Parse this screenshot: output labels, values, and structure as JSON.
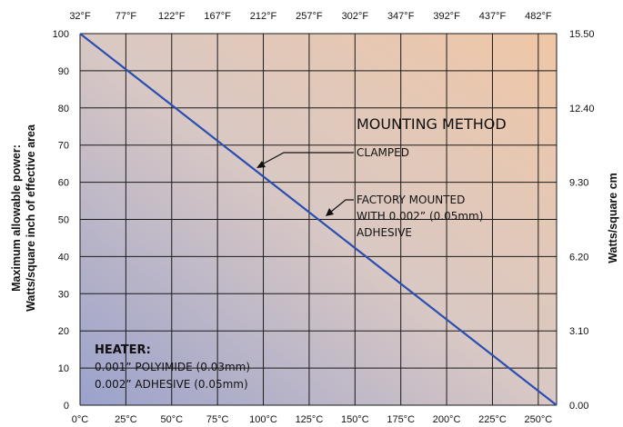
{
  "chart_data": {
    "type": "line",
    "x_bottom": {
      "ticks": [
        "0°C",
        "25°C",
        "50°C",
        "75°C",
        "100°C",
        "125°C",
        "150°C",
        "175°C",
        "200°C",
        "225°C",
        "250°C"
      ],
      "range": [
        0,
        260
      ]
    },
    "x_top": {
      "ticks": [
        "32°F",
        "77°F",
        "122°F",
        "167°F",
        "212°F",
        "257°F",
        "302°F",
        "347°F",
        "392°F",
        "437°F",
        "482°F"
      ]
    },
    "y_left": {
      "label_line1": "Maximum allowable power:",
      "label_line2": "Watts/square inch of effective area",
      "ticks": [
        0,
        10,
        20,
        30,
        40,
        50,
        60,
        70,
        80,
        90,
        100
      ],
      "range": [
        0,
        100
      ]
    },
    "y_right": {
      "label": "Watts/square cm",
      "ticks": [
        "15.50",
        "12.40",
        "9.30",
        "6.20",
        "3.10",
        "0.00"
      ],
      "tick_positions": [
        100,
        80,
        60,
        40,
        20,
        0
      ]
    },
    "grid": true,
    "series": [
      {
        "points": [
          [
            0,
            100
          ],
          [
            260,
            0
          ]
        ],
        "color": "#2a4fb0"
      }
    ],
    "annotations": {
      "mounting_method": "MOUNTING METHOD",
      "clamped": "CLAMPED",
      "factory_line1": "FACTORY MOUNTED",
      "factory_line2": "WITH 0.002” (0.05mm)",
      "factory_line3": "ADHESIVE",
      "heater_title": "HEATER:",
      "heater_line1": "0.001” POLYIMIDE (0.03mm)",
      "heater_line2": "0.002” ADHESIVE (0.05mm)"
    },
    "background_gradient": [
      "#9aa2cc",
      "#d9c8c4",
      "#f0c7a6"
    ]
  }
}
